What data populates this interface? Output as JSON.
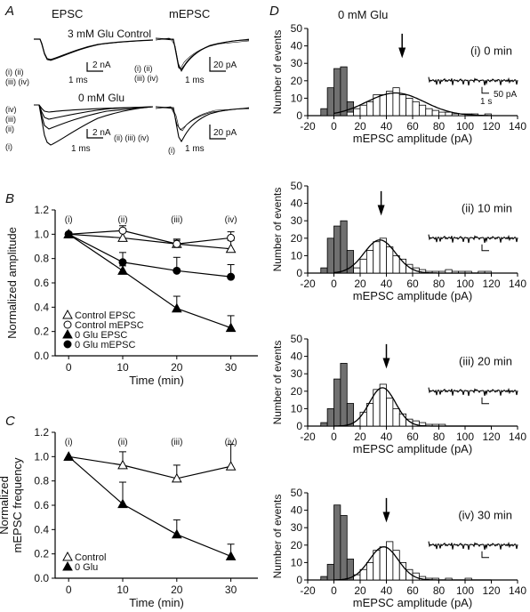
{
  "panels": {
    "A": {
      "letter": "A",
      "col_epsc": "EPSC",
      "col_mepsc": "mEPSC",
      "top_label": "3 mM Glu Control",
      "bottom_label": "0 mM Glu",
      "left_labels_top": [
        "(i) (ii)",
        "(iii) (iv)"
      ],
      "mid_labels_top": [
        "(i) (ii)",
        "(iii) (iv)"
      ],
      "left_labels_bottom": [
        "(iv)",
        "(iii)",
        "(ii)",
        "(i)"
      ],
      "mid_labels_bottom": [
        "(ii) (iii) (iv)",
        "(i)"
      ],
      "scale_2nA": "2 nA",
      "scale_1ms": "1 ms",
      "scale_20pA": "20 pA"
    },
    "D": {
      "letter": "D",
      "title": "0 mM Glu",
      "trace_scale_pA": "50 pA",
      "trace_scale_s": "1 s"
    }
  },
  "chart_data": [
    {
      "id": "B",
      "type": "line",
      "panel_letter": "B",
      "xlabel": "Time (min)",
      "ylabel": "Normalized amplitude",
      "xlim": [
        -2.5,
        35
      ],
      "ylim": [
        0,
        1.2
      ],
      "xticks": [
        0,
        10,
        20,
        30
      ],
      "yticks": [
        0.0,
        0.2,
        0.4,
        0.6,
        0.8,
        1.0,
        1.2
      ],
      "top_labels": [
        "(i)",
        "(ii)",
        "(iii)",
        "(iv)"
      ],
      "legend_position": "bottom-left",
      "series": [
        {
          "name": "Control EPSC",
          "marker": "open-triangle",
          "x": [
            0,
            10,
            20,
            30
          ],
          "y": [
            1.0,
            0.97,
            0.92,
            0.88
          ],
          "err": [
            0,
            0.05,
            0.04,
            0.07
          ]
        },
        {
          "name": "Control mEPSC",
          "marker": "open-circle",
          "x": [
            0,
            10,
            20,
            30
          ],
          "y": [
            1.0,
            1.03,
            0.92,
            0.97
          ],
          "err": [
            0,
            0.04,
            0.03,
            0.05
          ]
        },
        {
          "name": "0 Glu EPSC",
          "marker": "filled-triangle",
          "x": [
            0,
            10,
            20,
            30
          ],
          "y": [
            1.0,
            0.7,
            0.39,
            0.23
          ],
          "err": [
            0,
            0.04,
            0.1,
            0.1
          ]
        },
        {
          "name": "0 Glu mEPSC",
          "marker": "filled-circle",
          "x": [
            0,
            10,
            20,
            30
          ],
          "y": [
            1.0,
            0.77,
            0.7,
            0.65
          ],
          "err": [
            0,
            0.08,
            0.11,
            0.1
          ]
        }
      ]
    },
    {
      "id": "C",
      "type": "line",
      "panel_letter": "C",
      "xlabel": "Time (min)",
      "ylabel": "Normalized\nmEPSC frequency",
      "xlim": [
        -2.5,
        35
      ],
      "ylim": [
        0,
        1.2
      ],
      "xticks": [
        0,
        10,
        20,
        30
      ],
      "yticks": [
        0.0,
        0.2,
        0.4,
        0.6,
        0.8,
        1.0,
        1.2
      ],
      "top_labels": [
        "(i)",
        "(ii)",
        "(iii)",
        "(iv)"
      ],
      "legend_position": "bottom-left",
      "series": [
        {
          "name": "Control",
          "marker": "open-triangle",
          "x": [
            0,
            10,
            20,
            30
          ],
          "y": [
            1.0,
            0.93,
            0.82,
            0.92
          ],
          "err": [
            0,
            0.11,
            0.11,
            0.18
          ]
        },
        {
          "name": "0 Glu",
          "marker": "filled-triangle",
          "x": [
            0,
            10,
            20,
            30
          ],
          "y": [
            1.0,
            0.61,
            0.36,
            0.18
          ],
          "err": [
            0,
            0.18,
            0.12,
            0.1
          ]
        }
      ]
    },
    {
      "id": "D0",
      "type": "bar",
      "label": "(i) 0 min",
      "xlabel": "mEPSC amplitude (pA)",
      "ylabel": "Number of events",
      "xlim": [
        -20,
        140
      ],
      "ylim": [
        0,
        50
      ],
      "xticks": [
        -20,
        0,
        20,
        40,
        60,
        80,
        100,
        120,
        140
      ],
      "yticks": [
        0,
        10,
        20,
        30,
        40,
        50
      ],
      "bin_width": 5,
      "noise_bins": [
        -7.5,
        -2.5,
        2.5,
        7.5,
        12.5
      ],
      "noise_counts": [
        4,
        16,
        27,
        28,
        8
      ],
      "event_bins": [
        12.5,
        17.5,
        22.5,
        27.5,
        32.5,
        37.5,
        42.5,
        47.5,
        52.5,
        57.5,
        62.5,
        67.5,
        72.5,
        77.5,
        82.5,
        87.5,
        92.5,
        97.5,
        102.5,
        107.5,
        112.5,
        117.5
      ],
      "event_counts": [
        2,
        4,
        6,
        8,
        12,
        12,
        14,
        16,
        12,
        10,
        8,
        6,
        4,
        3,
        2,
        2,
        1,
        1,
        1,
        1,
        0,
        1
      ],
      "fit_mean": 47,
      "fit_sd": 22,
      "fit_peak": 13,
      "arrow_x": 52
    },
    {
      "id": "D10",
      "type": "bar",
      "label": "(ii) 10 min",
      "xlabel": "mEPSC amplitude (pA)",
      "ylabel": "Number of events",
      "xlim": [
        -20,
        140
      ],
      "ylim": [
        0,
        50
      ],
      "xticks": [
        -20,
        0,
        20,
        40,
        60,
        80,
        100,
        120,
        140
      ],
      "yticks": [
        0,
        10,
        20,
        30,
        40,
        50
      ],
      "bin_width": 5,
      "noise_bins": [
        -7.5,
        -2.5,
        2.5,
        7.5,
        12.5
      ],
      "noise_counts": [
        3,
        20,
        27,
        30,
        13
      ],
      "event_bins": [
        17.5,
        22.5,
        27.5,
        32.5,
        37.5,
        42.5,
        47.5,
        52.5,
        57.5,
        62.5,
        67.5,
        72.5,
        77.5,
        82.5,
        87.5,
        92.5,
        97.5,
        102.5,
        112.5,
        117.5
      ],
      "event_counts": [
        3,
        8,
        13,
        18,
        20,
        15,
        10,
        8,
        5,
        3,
        2,
        1,
        1,
        1,
        2,
        1,
        1,
        1,
        1,
        1
      ],
      "fit_mean": 35,
      "fit_sd": 12,
      "fit_peak": 19,
      "arrow_x": 36
    },
    {
      "id": "D20",
      "type": "bar",
      "label": "(iii) 20 min",
      "xlabel": "mEPSC amplitude (pA)",
      "ylabel": "Number of events",
      "xlim": [
        -20,
        140
      ],
      "ylim": [
        0,
        50
      ],
      "xticks": [
        -20,
        0,
        20,
        40,
        60,
        80,
        100,
        120,
        140
      ],
      "yticks": [
        0,
        10,
        20,
        30,
        40,
        50
      ],
      "bin_width": 5,
      "noise_bins": [
        -7.5,
        -2.5,
        2.5,
        7.5,
        12.5
      ],
      "noise_counts": [
        2,
        10,
        27,
        36,
        13
      ],
      "event_bins": [
        22.5,
        27.5,
        32.5,
        37.5,
        42.5,
        47.5,
        52.5,
        57.5,
        62.5,
        67.5,
        72.5,
        77.5,
        82.5
      ],
      "event_counts": [
        8,
        13,
        21,
        24,
        16,
        10,
        7,
        4,
        3,
        2,
        1,
        1,
        1
      ],
      "fit_mean": 37,
      "fit_sd": 10,
      "fit_peak": 22,
      "arrow_x": 40
    },
    {
      "id": "D30",
      "type": "bar",
      "label": "(iv) 30 min",
      "xlabel": "mEPSC amplitude (pA)",
      "ylabel": "Number of events",
      "xlim": [
        -20,
        140
      ],
      "ylim": [
        0,
        50
      ],
      "xticks": [
        -20,
        0,
        20,
        40,
        60,
        80,
        100,
        120,
        140
      ],
      "yticks": [
        0,
        10,
        20,
        30,
        40,
        50
      ],
      "bin_width": 5,
      "noise_bins": [
        -7.5,
        -2.5,
        2.5,
        7.5,
        12.5
      ],
      "noise_counts": [
        2,
        9,
        43,
        37,
        12
      ],
      "event_bins": [
        17.5,
        22.5,
        27.5,
        32.5,
        37.5,
        42.5,
        47.5,
        52.5,
        57.5,
        62.5,
        67.5,
        72.5,
        77.5,
        87.5,
        102.5
      ],
      "event_counts": [
        3,
        6,
        10,
        17,
        19,
        22,
        17,
        10,
        6,
        4,
        2,
        1,
        1,
        1,
        1
      ],
      "fit_mean": 38,
      "fit_sd": 11,
      "fit_peak": 19,
      "arrow_x": 40
    }
  ]
}
